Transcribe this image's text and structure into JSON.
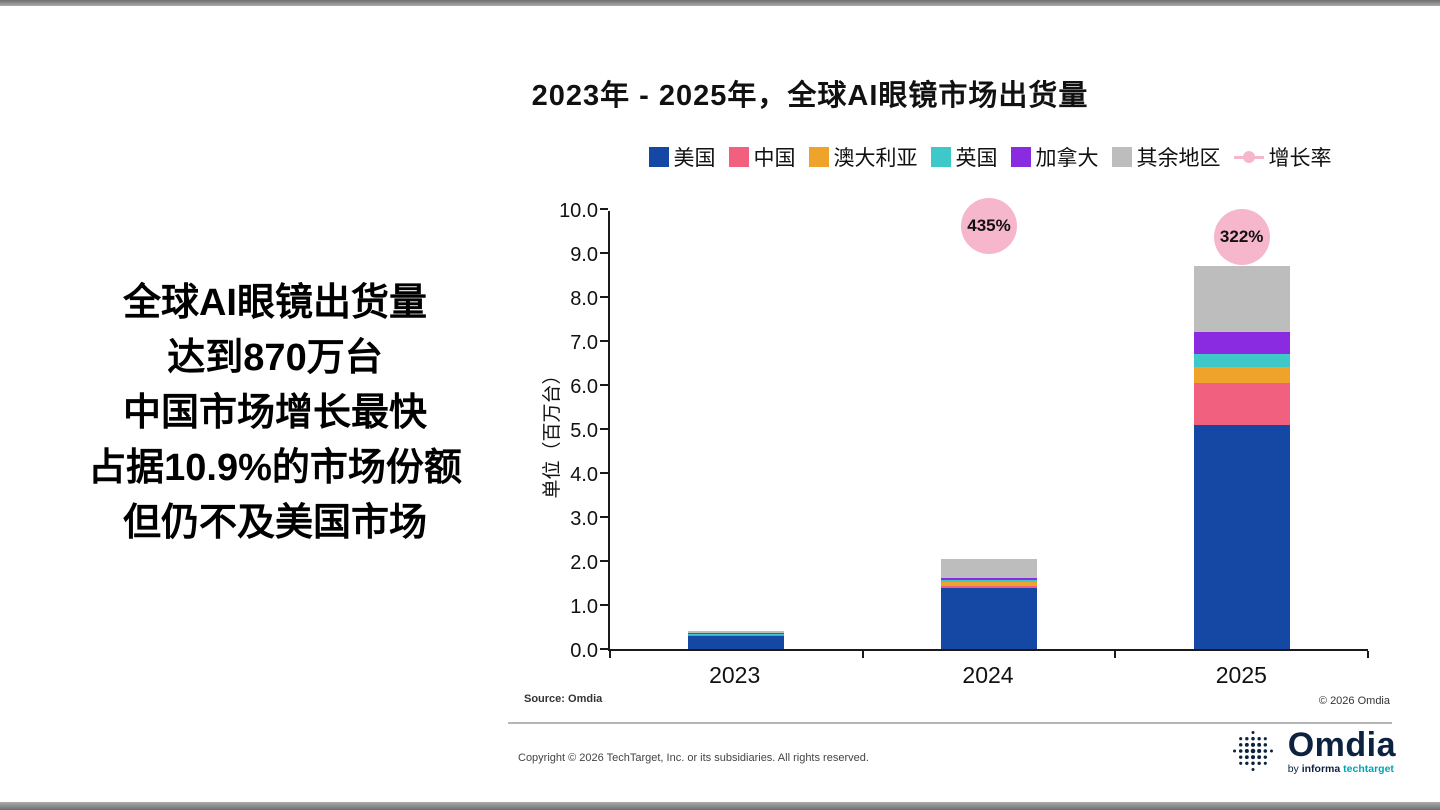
{
  "page": {
    "title": "2023年 - 2025年，全球AI眼镜市场出货量",
    "left_text_lines": [
      "全球AI眼镜出货量",
      "达到870万台",
      "中国市场增长最快",
      "占据10.9%的市场份额",
      "但仍不及美国市场"
    ],
    "source": "Source: Omdia",
    "chart_copyright": "© 2026 Omdia",
    "footer_copyright": "Copyright © 2026 TechTarget, Inc. or its subsidiaries. All rights reserved.",
    "logo": {
      "name": "Omdia",
      "byline_by": "by",
      "byline_informa": "informa",
      "byline_tech": "techtarget"
    }
  },
  "chart_data": {
    "type": "bar",
    "stacked": true,
    "title": "2023年 - 2025年，全球AI眼镜市场出货量",
    "categories": [
      "2023",
      "2024",
      "2025"
    ],
    "series": [
      {
        "name": "美国",
        "color": "#1547a5",
        "values": [
          0.29,
          1.38,
          5.1
        ]
      },
      {
        "name": "中国",
        "color": "#f2607f",
        "values": [
          0.02,
          0.05,
          0.95
        ]
      },
      {
        "name": "澳大利亚",
        "color": "#f0a32a",
        "values": [
          0.02,
          0.1,
          0.35
        ]
      },
      {
        "name": "英国",
        "color": "#3fc8c8",
        "values": [
          0.01,
          0.04,
          0.3
        ]
      },
      {
        "name": "加拿大",
        "color": "#8a2be2",
        "values": [
          0.02,
          0.05,
          0.5
        ]
      },
      {
        "name": "其余地区",
        "color": "#bdbdbd",
        "values": [
          0.04,
          0.43,
          1.5
        ]
      }
    ],
    "growth": {
      "name": "增长率",
      "color": "#f6b6cc",
      "labels": [
        null,
        "435%",
        "322%"
      ]
    },
    "ylabel": "单位（百万台）",
    "xlabel": "",
    "ylim": [
      0,
      10
    ],
    "ytick_step": 1.0,
    "ytick_labels": [
      "0.0",
      "1.0",
      "2.0",
      "3.0",
      "4.0",
      "5.0",
      "6.0",
      "7.0",
      "8.0",
      "9.0",
      "10.0"
    ],
    "grid": false,
    "legend_position": "top"
  }
}
